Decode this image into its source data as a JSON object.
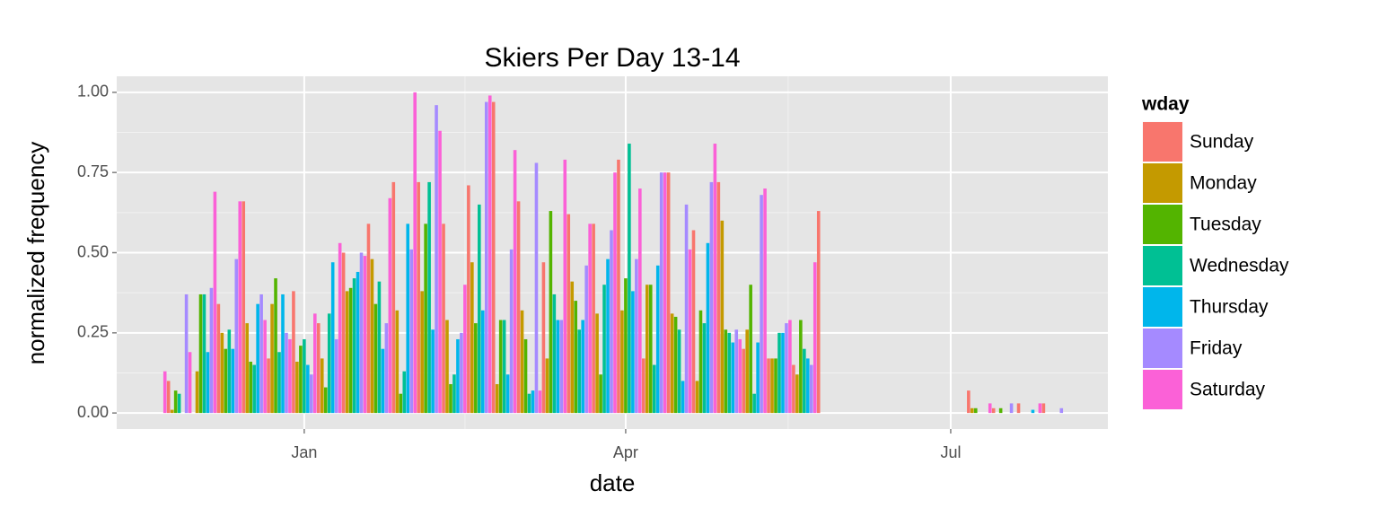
{
  "chart_data": {
    "type": "bar",
    "title": "Skiers Per Day 13-14",
    "x_label": "date",
    "y_label": "normalized frequency",
    "legend": {
      "title": "wday",
      "position": "right",
      "entries": [
        {
          "name": "Sunday",
          "color": "#F8766D"
        },
        {
          "name": "Monday",
          "color": "#C49A00"
        },
        {
          "name": "Tuesday",
          "color": "#53B400"
        },
        {
          "name": "Wednesday",
          "color": "#00C094"
        },
        {
          "name": "Thursday",
          "color": "#00B6EB"
        },
        {
          "name": "Friday",
          "color": "#A58AFF"
        },
        {
          "name": "Saturday",
          "color": "#FB61D7"
        }
      ]
    },
    "xlim": [
      -52.5,
      225
    ],
    "xticks": [
      {
        "value": 0,
        "label": "Jan"
      },
      {
        "value": 90,
        "label": "Apr"
      },
      {
        "value": 181,
        "label": "Jul"
      }
    ],
    "ylim": [
      -0.05,
      1.05
    ],
    "yticks": [
      {
        "value": 0,
        "label": "0.00"
      },
      0.25,
      {
        "value": 0.5,
        "label": "0.50"
      },
      0.75,
      {
        "value": 1,
        "label": "1.00"
      }
    ],
    "grid": true,
    "x": [
      -39,
      -38,
      -37,
      -36,
      -35,
      -34,
      -33,
      -32,
      -31,
      -30,
      -29,
      -28,
      -27,
      -26,
      -25,
      -24,
      -23,
      -22,
      -21,
      -20,
      -19,
      -18,
      -17,
      -16,
      -15,
      -14,
      -13,
      -12,
      -11,
      -10,
      -9,
      -8,
      -7,
      -6,
      -5,
      -4,
      -3,
      -2,
      -1,
      0,
      1,
      2,
      3,
      4,
      5,
      6,
      7,
      8,
      9,
      10,
      11,
      12,
      13,
      14,
      15,
      16,
      17,
      18,
      19,
      20,
      21,
      22,
      23,
      24,
      25,
      26,
      27,
      28,
      29,
      30,
      31,
      32,
      33,
      34,
      35,
      36,
      37,
      38,
      39,
      40,
      41,
      42,
      43,
      44,
      45,
      46,
      47,
      48,
      49,
      50,
      51,
      52,
      53,
      54,
      55,
      56,
      57,
      58,
      59,
      60,
      61,
      62,
      63,
      64,
      65,
      66,
      67,
      68,
      69,
      70,
      71,
      72,
      73,
      74,
      75,
      76,
      77,
      78,
      79,
      80,
      81,
      82,
      83,
      84,
      85,
      86,
      87,
      88,
      89,
      90,
      91,
      92,
      93,
      94,
      95,
      96,
      97,
      98,
      99,
      100,
      101,
      102,
      103,
      104,
      105,
      106,
      107,
      108,
      109,
      110,
      111,
      112,
      113,
      114,
      115,
      116,
      117,
      118,
      119,
      120,
      121,
      122,
      123,
      124,
      125,
      126,
      127,
      128,
      129,
      130,
      131,
      132,
      133,
      134,
      135,
      136,
      137,
      138,
      139,
      140,
      141,
      142,
      143,
      144,
      186,
      187,
      188,
      192,
      193,
      195,
      198,
      200,
      204,
      206,
      207,
      212
    ],
    "values": [
      0.13,
      0.1,
      0.01,
      0.07,
      0.06,
      0,
      0.37,
      0.19,
      0,
      0.13,
      0.37,
      0.37,
      0.19,
      0.39,
      0.69,
      0.34,
      0.25,
      0.2,
      0.26,
      0.2,
      0.48,
      0.66,
      0.66,
      0.28,
      0.16,
      0.15,
      0.34,
      0.37,
      0.29,
      0.17,
      0.34,
      0.42,
      0.19,
      0.37,
      0.25,
      0.23,
      0.38,
      0.16,
      0.21,
      0.23,
      0.15,
      0.12,
      0.31,
      0.28,
      0.17,
      0.08,
      0.31,
      0.47,
      0.23,
      0.53,
      0.5,
      0.38,
      0.39,
      0.42,
      0.44,
      0.5,
      0.49,
      0.59,
      0.48,
      0.34,
      0.41,
      0.2,
      0.28,
      0.67,
      0.72,
      0.32,
      0.06,
      0.13,
      0.59,
      0.51,
      1.0,
      0.72,
      0.38,
      0.59,
      0.72,
      0.26,
      0.96,
      0.88,
      0.59,
      0.29,
      0.09,
      0.12,
      0.23,
      0.25,
      0.4,
      0.71,
      0.47,
      0.28,
      0.65,
      0.32,
      0.97,
      0.99,
      0.97,
      0.09,
      0.29,
      0.29,
      0.12,
      0.51,
      0.82,
      0.66,
      0.32,
      0.23,
      0.06,
      0.07,
      0.78,
      0.07,
      0.47,
      0.17,
      0.63,
      0.37,
      0.29,
      0.29,
      0.79,
      0.62,
      0.41,
      0.35,
      0.26,
      0.29,
      0.46,
      0.59,
      0.59,
      0.31,
      0.12,
      0.4,
      0.48,
      0.57,
      0.75,
      0.79,
      0.32,
      0.42,
      0.84,
      0.38,
      0.48,
      0.7,
      0.17,
      0.4,
      0.4,
      0.15,
      0.46,
      0.75,
      0.75,
      0.75,
      0.31,
      0.3,
      0.26,
      0.1,
      0.65,
      0.51,
      0.57,
      0.1,
      0.32,
      0.28,
      0.53,
      0.72,
      0.84,
      0.72,
      0.6,
      0.26,
      0.25,
      0.22,
      0.26,
      0.23,
      0.2,
      0.26,
      0.4,
      0.06,
      0.22,
      0.68,
      0.7,
      0.17,
      0.17,
      0.17,
      0.25,
      0.25,
      0.28,
      0.29,
      0.15,
      0.12,
      0.29,
      0.2,
      0.17,
      0.15,
      0.47,
      0.63,
      0.07,
      0.015,
      0.015,
      0.03,
      0.015,
      0.015,
      0.03,
      0.03,
      0.01,
      0.03,
      0.03,
      0.015
    ],
    "wday": [
      "Saturday",
      "Sunday",
      "Monday",
      "Tuesday",
      "Wednesday",
      "Thursday",
      "Friday",
      "Saturday",
      "Sunday",
      "Monday",
      "Tuesday",
      "Wednesday",
      "Thursday",
      "Friday",
      "Saturday",
      "Sunday",
      "Monday",
      "Tuesday",
      "Wednesday",
      "Thursday",
      "Friday",
      "Saturday",
      "Sunday",
      "Monday",
      "Tuesday",
      "Wednesday",
      "Thursday",
      "Friday",
      "Saturday",
      "Sunday",
      "Monday",
      "Tuesday",
      "Wednesday",
      "Thursday",
      "Friday",
      "Saturday",
      "Sunday",
      "Monday",
      "Tuesday",
      "Wednesday",
      "Thursday",
      "Friday",
      "Saturday",
      "Sunday",
      "Monday",
      "Tuesday",
      "Wednesday",
      "Thursday",
      "Friday",
      "Saturday",
      "Sunday",
      "Monday",
      "Tuesday",
      "Wednesday",
      "Thursday",
      "Friday",
      "Saturday",
      "Sunday",
      "Monday",
      "Tuesday",
      "Wednesday",
      "Thursday",
      "Friday",
      "Saturday",
      "Sunday",
      "Monday",
      "Tuesday",
      "Wednesday",
      "Thursday",
      "Friday",
      "Saturday",
      "Sunday",
      "Monday",
      "Tuesday",
      "Wednesday",
      "Thursday",
      "Friday",
      "Saturday",
      "Sunday",
      "Monday",
      "Tuesday",
      "Wednesday",
      "Thursday",
      "Friday",
      "Saturday",
      "Sunday",
      "Monday",
      "Tuesday",
      "Wednesday",
      "Thursday",
      "Friday",
      "Saturday",
      "Sunday",
      "Monday",
      "Tuesday",
      "Wednesday",
      "Thursday",
      "Friday",
      "Saturday",
      "Sunday",
      "Monday",
      "Tuesday",
      "Wednesday",
      "Thursday",
      "Friday",
      "Saturday",
      "Sunday",
      "Monday",
      "Tuesday",
      "Wednesday",
      "Thursday",
      "Friday",
      "Saturday",
      "Sunday",
      "Monday",
      "Tuesday",
      "Wednesday",
      "Thursday",
      "Friday",
      "Saturday",
      "Sunday",
      "Monday",
      "Tuesday",
      "Wednesday",
      "Thursday",
      "Friday",
      "Saturday",
      "Sunday",
      "Monday",
      "Tuesday",
      "Wednesday",
      "Thursday",
      "Friday",
      "Saturday",
      "Sunday",
      "Monday",
      "Tuesday",
      "Wednesday",
      "Thursday",
      "Friday",
      "Saturday",
      "Sunday",
      "Monday",
      "Tuesday",
      "Wednesday",
      "Thursday",
      "Friday",
      "Saturday",
      "Sunday",
      "Monday",
      "Tuesday",
      "Wednesday",
      "Thursday",
      "Friday",
      "Saturday",
      "Sunday",
      "Monday",
      "Tuesday",
      "Wednesday",
      "Thursday",
      "Friday",
      "Saturday",
      "Sunday",
      "Monday",
      "Tuesday",
      "Wednesday",
      "Thursday",
      "Friday",
      "Saturday",
      "Sunday",
      "Monday",
      "Tuesday",
      "Wednesday",
      "Thursday",
      "Friday",
      "Saturday",
      "Sunday",
      "Monday",
      "Tuesday",
      "Wednesday",
      "Thursday",
      "Friday",
      "Saturday",
      "Sunday",
      "Sunday",
      "Monday",
      "Tuesday",
      "Saturday",
      "Sunday",
      "Tuesday",
      "Friday",
      "Sunday",
      "Thursday",
      "Saturday",
      "Sunday",
      "Friday"
    ]
  }
}
